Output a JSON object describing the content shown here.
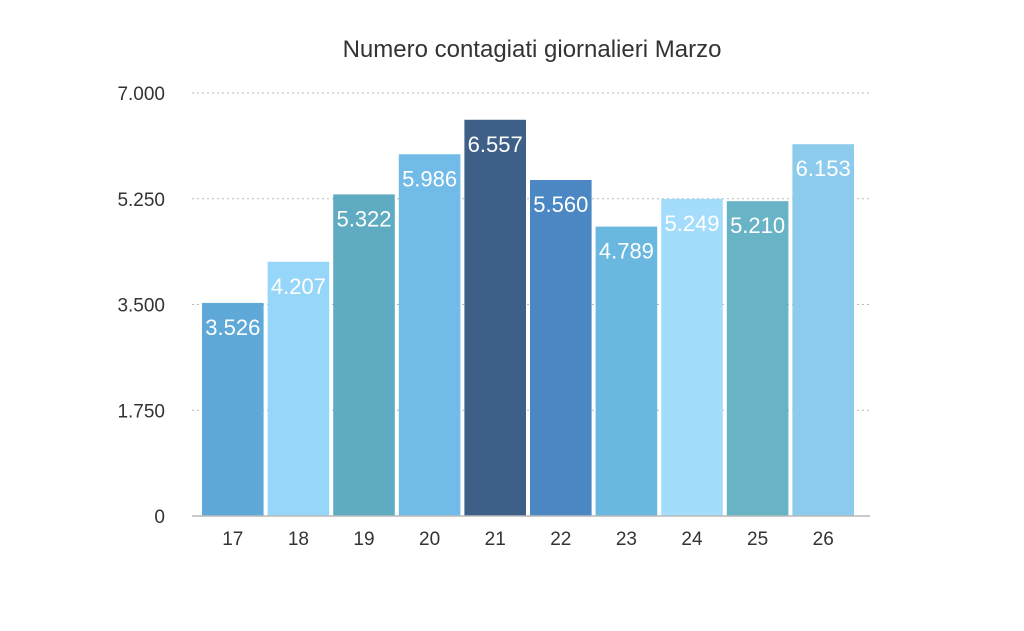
{
  "chart_data": {
    "type": "bar",
    "title": "Numero contagiati giornalieri Marzo",
    "xlabel": "",
    "ylabel": "",
    "categories": [
      "17",
      "18",
      "19",
      "20",
      "21",
      "22",
      "23",
      "24",
      "25",
      "26"
    ],
    "values": [
      3526,
      4207,
      5322,
      5986,
      6557,
      5560,
      4789,
      5249,
      5210,
      6153
    ],
    "value_labels": [
      "3.526",
      "4.207",
      "5.322",
      "5.986",
      "6.557",
      "5.560",
      "4.789",
      "5.249",
      "5.210",
      "6.153"
    ],
    "ylim": [
      0,
      7000
    ],
    "y_ticks": [
      0,
      1750,
      3500,
      5250,
      7000
    ],
    "y_tick_labels": [
      "0",
      "1.750",
      "3.500",
      "5.250",
      "7.000"
    ],
    "grid": true,
    "legend": "none",
    "bar_colors": [
      "#5fa9d8",
      "#96d6f9",
      "#5eabc2",
      "#71bbe8",
      "#3e5f88",
      "#4b87c3",
      "#6ab7e0",
      "#a4dcfb",
      "#69b3c6",
      "#8dcbed"
    ],
    "grid_color": "#b9b9b9",
    "axis_color": "#b9b9b9"
  }
}
